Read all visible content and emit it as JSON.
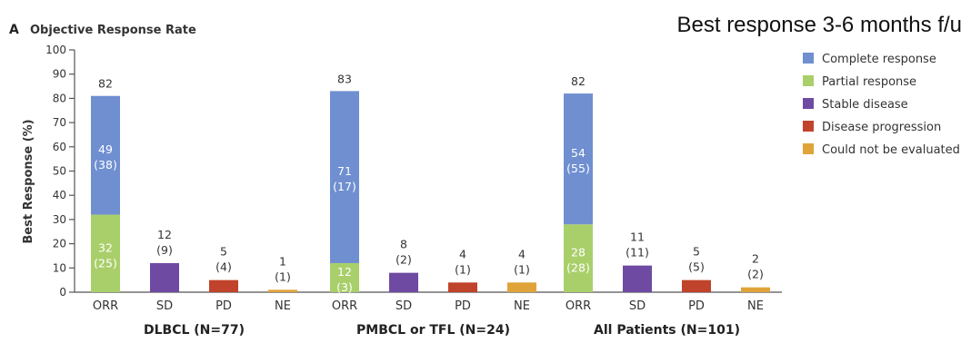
{
  "header": {
    "panel_letter": "A",
    "panel_title": "Objective Response Rate",
    "top_right_note": "Best response 3-6 months f/u"
  },
  "colors": {
    "Complete response": "#6f8fd0",
    "Partial response": "#a9cf6a",
    "Stable disease": "#6e4aa3",
    "Disease progression": "#c0432b",
    "Could not be evaluated": "#e0a33a"
  },
  "chart_data": {
    "type": "bar",
    "stacked": true,
    "ylabel": "Best Response (%)",
    "ylim": [
      0,
      100
    ],
    "yticks": [
      0,
      10,
      20,
      30,
      40,
      50,
      60,
      70,
      80,
      90,
      100
    ],
    "grid": false,
    "legend_position": "right",
    "legend": [
      "Complete response",
      "Partial response",
      "Stable disease",
      "Disease progression",
      "Could not be evaluated"
    ],
    "groups": [
      {
        "name": "DLBCL (N=77)",
        "bars": [
          {
            "category": "ORR",
            "total_label": "82",
            "segments": [
              {
                "series": "Partial response",
                "value": 32,
                "label": "32",
                "sub": "(25)"
              },
              {
                "series": "Complete response",
                "value": 49,
                "label": "49",
                "sub": "(38)"
              }
            ]
          },
          {
            "category": "SD",
            "total_label": "12",
            "total_sub": "(9)",
            "segments": [
              {
                "series": "Stable disease",
                "value": 12
              }
            ]
          },
          {
            "category": "PD",
            "total_label": "5",
            "total_sub": "(4)",
            "segments": [
              {
                "series": "Disease progression",
                "value": 5
              }
            ]
          },
          {
            "category": "NE",
            "total_label": "1",
            "total_sub": "(1)",
            "segments": [
              {
                "series": "Could not be evaluated",
                "value": 1
              }
            ]
          }
        ]
      },
      {
        "name": "PMBCL or TFL (N=24)",
        "bars": [
          {
            "category": "ORR",
            "total_label": "83",
            "segments": [
              {
                "series": "Partial response",
                "value": 12,
                "label": "12",
                "sub": "(3)"
              },
              {
                "series": "Complete response",
                "value": 71,
                "label": "71",
                "sub": "(17)"
              }
            ]
          },
          {
            "category": "SD",
            "total_label": "8",
            "total_sub": "(2)",
            "segments": [
              {
                "series": "Stable disease",
                "value": 8
              }
            ]
          },
          {
            "category": "PD",
            "total_label": "4",
            "total_sub": "(1)",
            "segments": [
              {
                "series": "Disease progression",
                "value": 4
              }
            ]
          },
          {
            "category": "NE",
            "total_label": "4",
            "total_sub": "(1)",
            "segments": [
              {
                "series": "Could not be evaluated",
                "value": 4
              }
            ]
          }
        ]
      },
      {
        "name": "All Patients (N=101)",
        "bars": [
          {
            "category": "ORR",
            "total_label": "82",
            "segments": [
              {
                "series": "Partial response",
                "value": 28,
                "label": "28",
                "sub": "(28)"
              },
              {
                "series": "Complete response",
                "value": 54,
                "label": "54",
                "sub": "(55)"
              }
            ]
          },
          {
            "category": "SD",
            "total_label": "11",
            "total_sub": "(11)",
            "segments": [
              {
                "series": "Stable disease",
                "value": 11
              }
            ]
          },
          {
            "category": "PD",
            "total_label": "5",
            "total_sub": "(5)",
            "segments": [
              {
                "series": "Disease progression",
                "value": 5
              }
            ]
          },
          {
            "category": "NE",
            "total_label": "2",
            "total_sub": "(2)",
            "segments": [
              {
                "series": "Could not be evaluated",
                "value": 2
              }
            ]
          }
        ]
      }
    ]
  }
}
